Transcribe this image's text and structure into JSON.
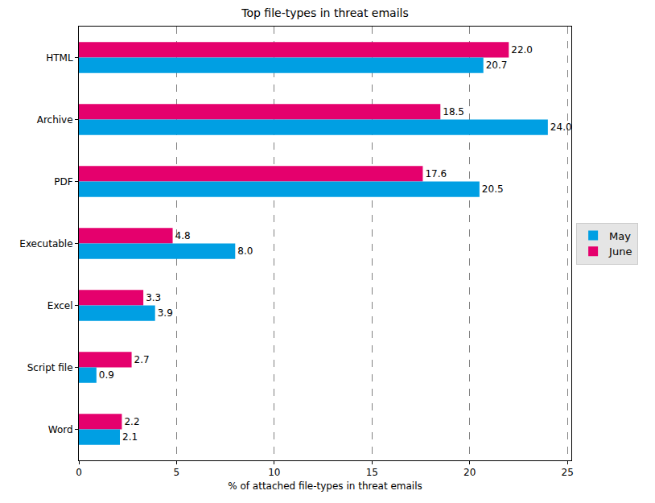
{
  "chart_data": {
    "type": "bar",
    "orientation": "horizontal",
    "title": "Top file-types in threat emails",
    "x_label": "% of attached file-types in threat emails",
    "categories": [
      "HTML",
      "Archive",
      "PDF",
      "Executable",
      "Excel",
      "Script file",
      "Word"
    ],
    "series": [
      {
        "name": "May",
        "color": "#009fe3",
        "values": [
          20.7,
          24.0,
          20.5,
          8.0,
          3.9,
          0.9,
          2.1
        ],
        "value_labels": [
          "20.7",
          "24.0",
          "20.5",
          "8.0",
          "3.9",
          "0.9",
          "2.1"
        ]
      },
      {
        "name": "June",
        "color": "#e5006d",
        "values": [
          22.0,
          18.5,
          17.6,
          4.8,
          3.3,
          2.7,
          2.2
        ],
        "value_labels": [
          "22.0",
          "18.5",
          "17.6",
          "4.8",
          "3.3",
          "2.7",
          "2.2"
        ]
      }
    ],
    "xlim": [
      0,
      25.2
    ],
    "xticks": [
      0,
      5,
      10,
      15,
      20,
      25
    ],
    "grid": true,
    "data_labels": true,
    "legend": "right"
  }
}
